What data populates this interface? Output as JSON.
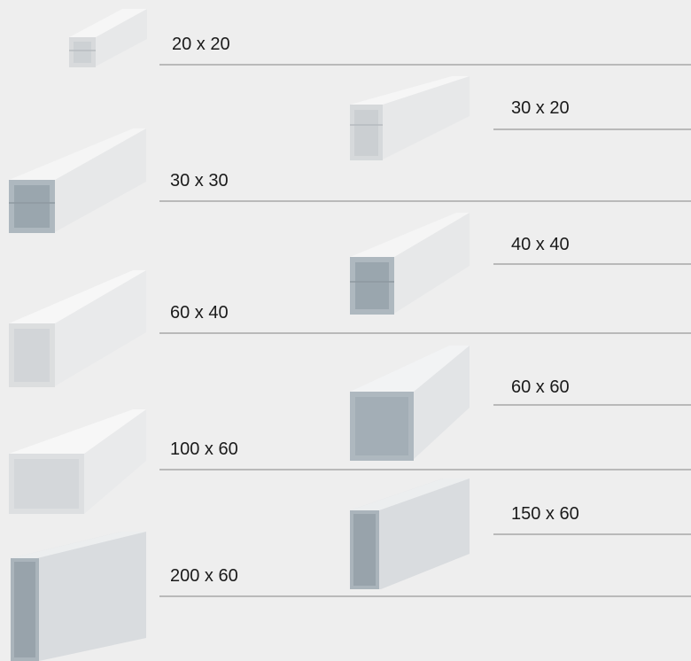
{
  "items": [
    {
      "label": "20 x 20",
      "interior": "white"
    },
    {
      "label": "30 x 20",
      "interior": "white"
    },
    {
      "label": "30 x 30",
      "interior": "metal"
    },
    {
      "label": "40 x 40",
      "interior": "metal"
    },
    {
      "label": "60 x 40",
      "interior": "white"
    },
    {
      "label": "60 x 60",
      "interior": "metal"
    },
    {
      "label": "100 x 60",
      "interior": "white"
    },
    {
      "label": "150 x 60",
      "interior": "metal"
    },
    {
      "label": "200 x 60",
      "interior": "metal"
    }
  ],
  "colors": {
    "background": "#eeeeee",
    "divider": "#b9b9b9",
    "duct_white": "#e6e7e8",
    "duct_metal": "#a9b4bc"
  }
}
